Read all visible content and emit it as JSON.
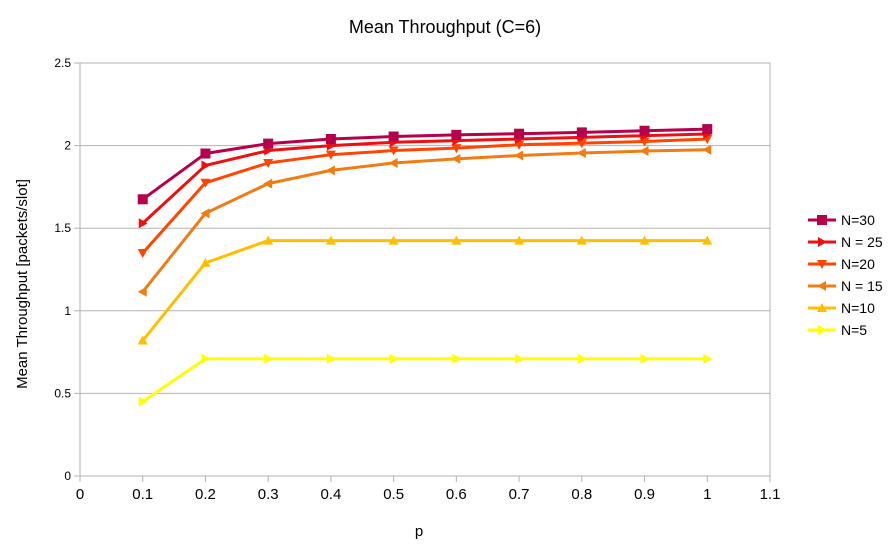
{
  "chart_data": {
    "type": "line",
    "title": "Mean Throughput (C=6)",
    "xlabel": "p",
    "ylabel": "Mean Throughput [packets/slot]",
    "xlim": [
      0,
      1.1
    ],
    "ylim": [
      0,
      2.5
    ],
    "xticks": [
      "0",
      "0.1",
      "0.2",
      "0.3",
      "0.4",
      "0.5",
      "0.6",
      "0.7",
      "0.8",
      "0.9",
      "1",
      "1.1"
    ],
    "yticks": [
      "0",
      "0.5",
      "1",
      "1.5",
      "2",
      "2.5"
    ],
    "grid": "horizontal",
    "legend_position": "right",
    "x": [
      0.1,
      0.2,
      0.3,
      0.4,
      0.5,
      0.6,
      0.7,
      0.8,
      0.9,
      1.0
    ],
    "series": [
      {
        "name": "N=30",
        "color": "#b5004b",
        "marker": "square",
        "values": [
          1.675,
          1.952,
          2.012,
          2.04,
          2.055,
          2.065,
          2.072,
          2.08,
          2.09,
          2.1
        ]
      },
      {
        "name": "N = 25",
        "color": "#ee1010",
        "marker": "triangle-right",
        "values": [
          1.53,
          1.88,
          1.97,
          2.0,
          2.02,
          2.03,
          2.04,
          2.05,
          2.06,
          2.07
        ]
      },
      {
        "name": "N=20",
        "color": "#ff4500",
        "marker": "triangle-down",
        "values": [
          1.35,
          1.775,
          1.895,
          1.945,
          1.97,
          1.985,
          2.005,
          2.015,
          2.025,
          2.04
        ]
      },
      {
        "name": "N = 15",
        "color": "#f07c14",
        "marker": "triangle-left",
        "values": [
          1.115,
          1.59,
          1.77,
          1.85,
          1.895,
          1.92,
          1.94,
          1.955,
          1.967,
          1.975
        ]
      },
      {
        "name": "N=10",
        "color": "#ffbf00",
        "marker": "triangle-up",
        "values": [
          0.82,
          1.29,
          1.425,
          1.425,
          1.425,
          1.425,
          1.425,
          1.425,
          1.425,
          1.425
        ]
      },
      {
        "name": "N=5",
        "color": "#ffff00",
        "marker": "triangle-right",
        "values": [
          0.45,
          0.71,
          0.71,
          0.71,
          0.71,
          0.71,
          0.71,
          0.71,
          0.71,
          0.71
        ]
      }
    ]
  }
}
